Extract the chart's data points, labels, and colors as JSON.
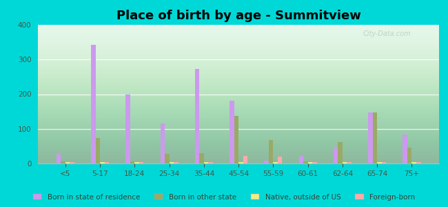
{
  "title": "Place of birth by age - Summitview",
  "categories": [
    "<5",
    "5-17",
    "18-24",
    "25-34",
    "35-44",
    "45-54",
    "55-59",
    "60-61",
    "62-64",
    "65-74",
    "75+"
  ],
  "series": {
    "born_in_state": {
      "label": "Born in state of residence",
      "color": "#cc99ee",
      "values": [
        28,
        343,
        200,
        115,
        272,
        182,
        8,
        22,
        47,
        148,
        83
      ]
    },
    "born_other_state": {
      "label": "Born in other state",
      "color": "#99aa66",
      "values": [
        5,
        74,
        5,
        28,
        30,
        138,
        68,
        5,
        62,
        148,
        45
      ]
    },
    "native_outside": {
      "label": "Native, outside of US",
      "color": "#eeee88",
      "values": [
        3,
        3,
        3,
        3,
        3,
        3,
        3,
        3,
        3,
        3,
        3
      ]
    },
    "foreign_born": {
      "label": "Foreign-born",
      "color": "#ffaaaa",
      "values": [
        3,
        3,
        3,
        3,
        3,
        22,
        20,
        3,
        3,
        3,
        3
      ]
    }
  },
  "ylim": [
    0,
    400
  ],
  "yticks": [
    0,
    100,
    200,
    300,
    400
  ],
  "bg_top_color": "#f0fff0",
  "bg_bottom_color": "#c8f0d8",
  "figure_bg": "#00d8d8",
  "bar_width": 0.13,
  "title_fontsize": 13,
  "tick_fontsize": 7.5,
  "legend_fontsize": 7.5,
  "watermark": "City-Data.com"
}
